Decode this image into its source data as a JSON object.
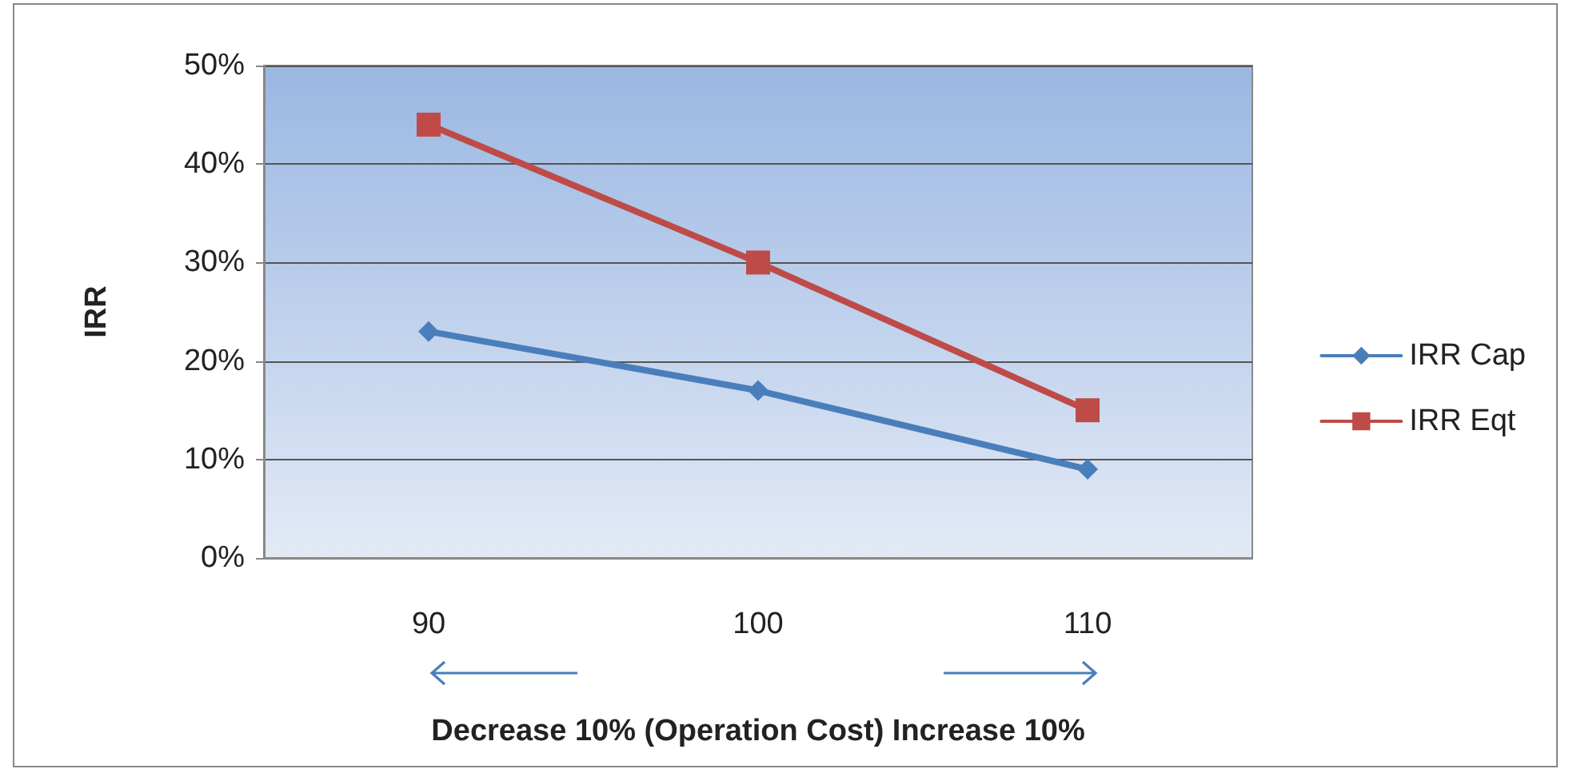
{
  "chart_data": {
    "type": "line",
    "ylabel": "IRR",
    "xlabel": "Decrease 10% (Operation Cost) Increase 10%",
    "categories": [
      "90",
      "100",
      "110"
    ],
    "series": [
      {
        "name": "IRR Cap",
        "color": "#4a7ebb",
        "marker": "diamond",
        "values": [
          23,
          17,
          9
        ]
      },
      {
        "name": "IRR Eqt",
        "color": "#be4b48",
        "marker": "square",
        "values": [
          44,
          30,
          15
        ]
      }
    ],
    "ylim": [
      0,
      50
    ],
    "yticks": [
      {
        "value": 0,
        "label": "0%"
      },
      {
        "value": 10,
        "label": "10%"
      },
      {
        "value": 20,
        "label": "20%"
      },
      {
        "value": 30,
        "label": "30%"
      },
      {
        "value": 40,
        "label": "40%"
      },
      {
        "value": 50,
        "label": "50%"
      }
    ],
    "grid": "y",
    "legend": "right",
    "line_style": "solid"
  }
}
